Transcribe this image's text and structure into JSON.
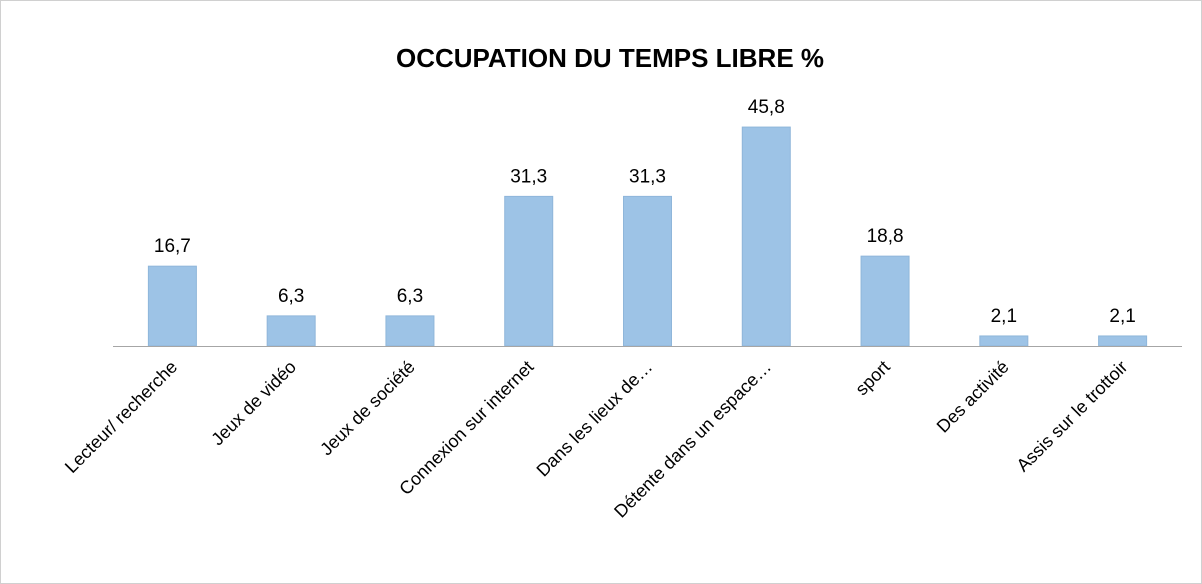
{
  "chart_data": {
    "type": "bar",
    "title": "OCCUPATION DU TEMPS LIBRE %",
    "categories": [
      "Lecteur/ recherche",
      "Jeux de vidéo",
      "Jeux de société",
      "Connexion sur internet",
      "Dans les lieux de…",
      "Détente dans un espace…",
      "sport",
      "Des activité",
      "Assis sur le trottoir"
    ],
    "values": [
      16.7,
      6.3,
      6.3,
      31.3,
      31.3,
      45.8,
      18.8,
      2.1,
      2.1
    ],
    "value_labels": [
      "16,7",
      "6,3",
      "6,3",
      "31,3",
      "31,3",
      "45,8",
      "18,8",
      "2,1",
      "2,1"
    ],
    "color": "#9dc3e6"
  }
}
